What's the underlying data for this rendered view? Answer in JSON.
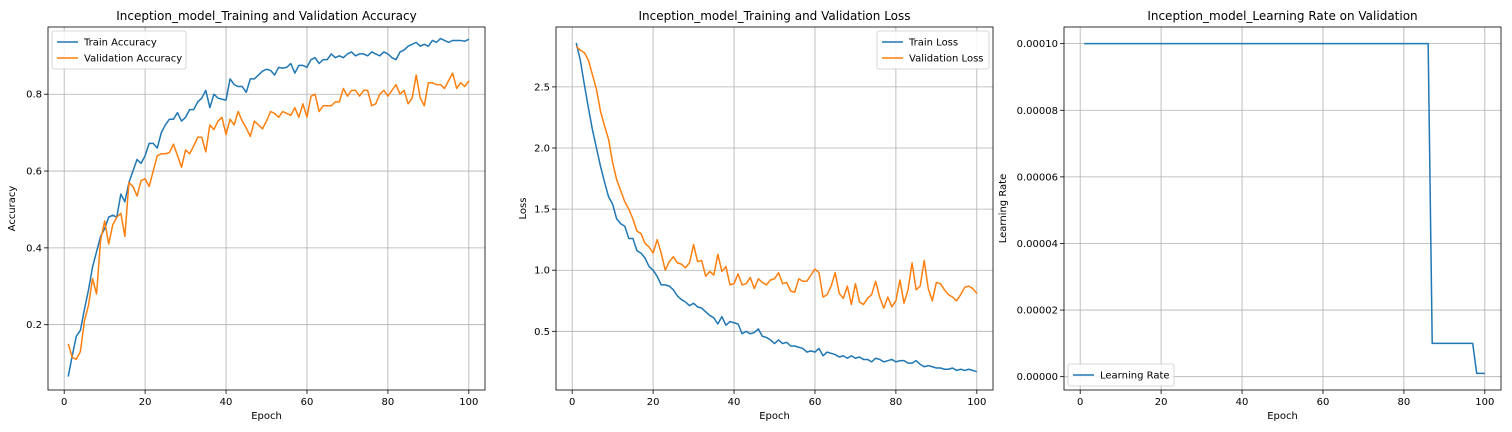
{
  "chart_data": [
    {
      "type": "line",
      "title": "Inception_model_Training and Validation Accuracy",
      "xlabel": "Epoch",
      "ylabel": "Accuracy",
      "xlim": [
        -4,
        104
      ],
      "ylim": [
        0.03,
        0.975
      ],
      "xticks": [
        0,
        20,
        40,
        60,
        80,
        100
      ],
      "xtick_labels": [
        "0",
        "20",
        "40",
        "60",
        "80",
        "100"
      ],
      "yticks": [
        0.2,
        0.4,
        0.6,
        0.8
      ],
      "ytick_labels": [
        "0.2",
        "0.4",
        "0.6",
        "0.8"
      ],
      "grid": true,
      "legend_position": "upper-left",
      "series": [
        {
          "name": "Train Accuracy",
          "color": "#1f77b4",
          "x": [
            1,
            2,
            3,
            4,
            5,
            6,
            7,
            8,
            9,
            10,
            11,
            12,
            13,
            14,
            15,
            16,
            17,
            18,
            19,
            20,
            21,
            22,
            23,
            24,
            25,
            26,
            27,
            28,
            29,
            30,
            31,
            32,
            33,
            34,
            35,
            36,
            37,
            38,
            39,
            40,
            41,
            42,
            43,
            44,
            45,
            46,
            47,
            48,
            49,
            50,
            51,
            52,
            53,
            54,
            55,
            56,
            57,
            58,
            59,
            60,
            61,
            62,
            63,
            64,
            65,
            66,
            67,
            68,
            69,
            70,
            71,
            72,
            73,
            74,
            75,
            76,
            77,
            78,
            79,
            80,
            81,
            82,
            83,
            84,
            85,
            86,
            87,
            88,
            89,
            90,
            91,
            92,
            93,
            94,
            95,
            96,
            97,
            98,
            99,
            100
          ],
          "values": [
            0.065,
            0.12,
            0.17,
            0.185,
            0.24,
            0.29,
            0.35,
            0.39,
            0.43,
            0.45,
            0.48,
            0.485,
            0.48,
            0.54,
            0.52,
            0.57,
            0.6,
            0.63,
            0.62,
            0.64,
            0.672,
            0.672,
            0.66,
            0.7,
            0.72,
            0.735,
            0.735,
            0.752,
            0.73,
            0.74,
            0.76,
            0.76,
            0.78,
            0.79,
            0.81,
            0.765,
            0.8,
            0.79,
            0.787,
            0.785,
            0.84,
            0.825,
            0.82,
            0.82,
            0.805,
            0.84,
            0.84,
            0.85,
            0.86,
            0.865,
            0.862,
            0.85,
            0.87,
            0.868,
            0.87,
            0.88,
            0.855,
            0.875,
            0.875,
            0.87,
            0.89,
            0.895,
            0.88,
            0.89,
            0.89,
            0.905,
            0.895,
            0.9,
            0.895,
            0.905,
            0.91,
            0.9,
            0.905,
            0.905,
            0.9,
            0.91,
            0.905,
            0.9,
            0.91,
            0.905,
            0.895,
            0.89,
            0.91,
            0.915,
            0.925,
            0.93,
            0.935,
            0.925,
            0.93,
            0.925,
            0.94,
            0.935,
            0.945,
            0.94,
            0.935,
            0.94,
            0.94,
            0.94,
            0.938,
            0.943
          ]
        },
        {
          "name": "Validation Accuracy",
          "color": "#ff7f0e",
          "x": [
            1,
            2,
            3,
            4,
            5,
            6,
            7,
            8,
            9,
            10,
            11,
            12,
            13,
            14,
            15,
            16,
            17,
            18,
            19,
            20,
            21,
            22,
            23,
            24,
            25,
            26,
            27,
            28,
            29,
            30,
            31,
            32,
            33,
            34,
            35,
            36,
            37,
            38,
            39,
            40,
            41,
            42,
            43,
            44,
            45,
            46,
            47,
            48,
            49,
            50,
            51,
            52,
            53,
            54,
            55,
            56,
            57,
            58,
            59,
            60,
            61,
            62,
            63,
            64,
            65,
            66,
            67,
            68,
            69,
            70,
            71,
            72,
            73,
            74,
            75,
            76,
            77,
            78,
            79,
            80,
            81,
            82,
            83,
            84,
            85,
            86,
            87,
            88,
            89,
            90,
            91,
            92,
            93,
            94,
            95,
            96,
            97,
            98,
            99,
            100
          ],
          "values": [
            0.15,
            0.115,
            0.11,
            0.13,
            0.21,
            0.25,
            0.32,
            0.28,
            0.42,
            0.47,
            0.41,
            0.46,
            0.48,
            0.49,
            0.43,
            0.57,
            0.56,
            0.535,
            0.575,
            0.58,
            0.56,
            0.6,
            0.64,
            0.645,
            0.645,
            0.648,
            0.67,
            0.64,
            0.61,
            0.655,
            0.645,
            0.665,
            0.688,
            0.688,
            0.65,
            0.72,
            0.708,
            0.73,
            0.74,
            0.695,
            0.735,
            0.72,
            0.755,
            0.73,
            0.712,
            0.69,
            0.73,
            0.72,
            0.71,
            0.73,
            0.755,
            0.75,
            0.74,
            0.755,
            0.75,
            0.745,
            0.765,
            0.74,
            0.775,
            0.74,
            0.795,
            0.8,
            0.755,
            0.77,
            0.77,
            0.77,
            0.78,
            0.78,
            0.815,
            0.795,
            0.81,
            0.81,
            0.795,
            0.81,
            0.81,
            0.77,
            0.775,
            0.8,
            0.81,
            0.795,
            0.81,
            0.825,
            0.8,
            0.81,
            0.775,
            0.79,
            0.85,
            0.79,
            0.77,
            0.83,
            0.83,
            0.825,
            0.825,
            0.815,
            0.835,
            0.855,
            0.815,
            0.83,
            0.82,
            0.835
          ]
        }
      ]
    },
    {
      "type": "line",
      "title": "Inception_model_Training and Validation Loss",
      "xlabel": "Epoch",
      "ylabel": "Loss",
      "xlim": [
        -4,
        104
      ],
      "ylim": [
        0.02,
        2.99
      ],
      "xticks": [
        0,
        20,
        40,
        60,
        80,
        100
      ],
      "xtick_labels": [
        "0",
        "20",
        "40",
        "60",
        "80",
        "100"
      ],
      "yticks": [
        0.5,
        1.0,
        1.5,
        2.0,
        2.5
      ],
      "ytick_labels": [
        "0.5",
        "1.0",
        "1.5",
        "2.0",
        "2.5"
      ],
      "grid": true,
      "legend_position": "upper-right",
      "series": [
        {
          "name": "Train Loss",
          "color": "#1f77b4",
          "x": [
            1,
            2,
            3,
            4,
            5,
            6,
            7,
            8,
            9,
            10,
            11,
            12,
            13,
            14,
            15,
            16,
            17,
            18,
            19,
            20,
            21,
            22,
            23,
            24,
            25,
            26,
            27,
            28,
            29,
            30,
            31,
            32,
            33,
            34,
            35,
            36,
            37,
            38,
            39,
            40,
            41,
            42,
            43,
            44,
            45,
            46,
            47,
            48,
            49,
            50,
            51,
            52,
            53,
            54,
            55,
            56,
            57,
            58,
            59,
            60,
            61,
            62,
            63,
            64,
            65,
            66,
            67,
            68,
            69,
            70,
            71,
            72,
            73,
            74,
            75,
            76,
            77,
            78,
            79,
            80,
            81,
            82,
            83,
            84,
            85,
            86,
            87,
            88,
            89,
            90,
            91,
            92,
            93,
            94,
            95,
            96,
            97,
            98,
            99,
            100
          ],
          "values": [
            2.86,
            2.72,
            2.52,
            2.33,
            2.15,
            2.0,
            1.85,
            1.72,
            1.6,
            1.54,
            1.42,
            1.38,
            1.36,
            1.26,
            1.26,
            1.16,
            1.14,
            1.1,
            1.03,
            1.0,
            0.95,
            0.88,
            0.88,
            0.87,
            0.84,
            0.79,
            0.76,
            0.74,
            0.71,
            0.73,
            0.7,
            0.69,
            0.66,
            0.63,
            0.61,
            0.56,
            0.62,
            0.55,
            0.58,
            0.57,
            0.56,
            0.48,
            0.5,
            0.48,
            0.49,
            0.52,
            0.46,
            0.45,
            0.43,
            0.4,
            0.43,
            0.4,
            0.41,
            0.38,
            0.38,
            0.37,
            0.36,
            0.33,
            0.34,
            0.33,
            0.36,
            0.3,
            0.33,
            0.32,
            0.31,
            0.29,
            0.3,
            0.28,
            0.3,
            0.28,
            0.29,
            0.27,
            0.27,
            0.25,
            0.28,
            0.27,
            0.25,
            0.26,
            0.27,
            0.25,
            0.26,
            0.26,
            0.24,
            0.24,
            0.26,
            0.23,
            0.21,
            0.22,
            0.21,
            0.2,
            0.2,
            0.19,
            0.19,
            0.2,
            0.18,
            0.19,
            0.18,
            0.19,
            0.18,
            0.17
          ]
        },
        {
          "name": "Validation Loss",
          "color": "#ff7f0e",
          "x": [
            1,
            2,
            3,
            4,
            5,
            6,
            7,
            8,
            9,
            10,
            11,
            12,
            13,
            14,
            15,
            16,
            17,
            18,
            19,
            20,
            21,
            22,
            23,
            24,
            25,
            26,
            27,
            28,
            29,
            30,
            31,
            32,
            33,
            34,
            35,
            36,
            37,
            38,
            39,
            40,
            41,
            42,
            43,
            44,
            45,
            46,
            47,
            48,
            49,
            50,
            51,
            52,
            53,
            54,
            55,
            56,
            57,
            58,
            59,
            60,
            61,
            62,
            63,
            64,
            65,
            66,
            67,
            68,
            69,
            70,
            71,
            72,
            73,
            74,
            75,
            76,
            77,
            78,
            79,
            80,
            81,
            82,
            83,
            84,
            85,
            86,
            87,
            88,
            89,
            90,
            91,
            92,
            93,
            94,
            95,
            96,
            97,
            98,
            99,
            100
          ],
          "values": [
            2.83,
            2.8,
            2.78,
            2.72,
            2.6,
            2.48,
            2.3,
            2.18,
            2.07,
            1.88,
            1.74,
            1.65,
            1.56,
            1.5,
            1.42,
            1.32,
            1.3,
            1.22,
            1.19,
            1.14,
            1.25,
            1.14,
            1.0,
            1.07,
            1.11,
            1.06,
            1.05,
            1.02,
            1.06,
            1.21,
            1.07,
            1.08,
            0.95,
            0.99,
            0.96,
            1.13,
            0.99,
            1.03,
            0.88,
            0.89,
            0.97,
            0.88,
            0.89,
            0.94,
            0.85,
            0.93,
            0.9,
            0.88,
            0.92,
            0.93,
            0.98,
            0.89,
            0.9,
            0.83,
            0.82,
            0.93,
            0.91,
            0.91,
            0.96,
            1.01,
            0.98,
            0.78,
            0.8,
            0.87,
            0.98,
            0.81,
            0.77,
            0.87,
            0.72,
            0.89,
            0.74,
            0.72,
            0.77,
            0.8,
            0.91,
            0.78,
            0.69,
            0.78,
            0.7,
            0.75,
            0.92,
            0.73,
            0.84,
            1.06,
            0.84,
            0.87,
            1.08,
            0.85,
            0.75,
            0.9,
            0.89,
            0.84,
            0.8,
            0.78,
            0.75,
            0.8,
            0.86,
            0.87,
            0.85,
            0.81
          ]
        }
      ]
    },
    {
      "type": "line",
      "title": "Inception_model_Learning Rate on Validation",
      "xlabel": "Epoch",
      "ylabel": "Learning Rate",
      "xlim": [
        -4,
        104
      ],
      "ylim": [
        -4e-06,
        0.000105
      ],
      "xticks": [
        0,
        20,
        40,
        60,
        80,
        100
      ],
      "xtick_labels": [
        "0",
        "20",
        "40",
        "60",
        "80",
        "100"
      ],
      "yticks": [
        0.0,
        2e-05,
        4e-05,
        6e-05,
        8e-05,
        0.0001
      ],
      "ytick_labels": [
        "0.00000",
        "0.00002",
        "0.00004",
        "0.00006",
        "0.00008",
        "0.00010"
      ],
      "grid": true,
      "legend_position": "lower-left",
      "series": [
        {
          "name": "Learning Rate",
          "color": "#1f77b4",
          "x": [
            1,
            86,
            87,
            97,
            98,
            100
          ],
          "values": [
            0.0001,
            0.0001,
            1e-05,
            1e-05,
            1e-06,
            1e-06
          ]
        }
      ]
    }
  ]
}
